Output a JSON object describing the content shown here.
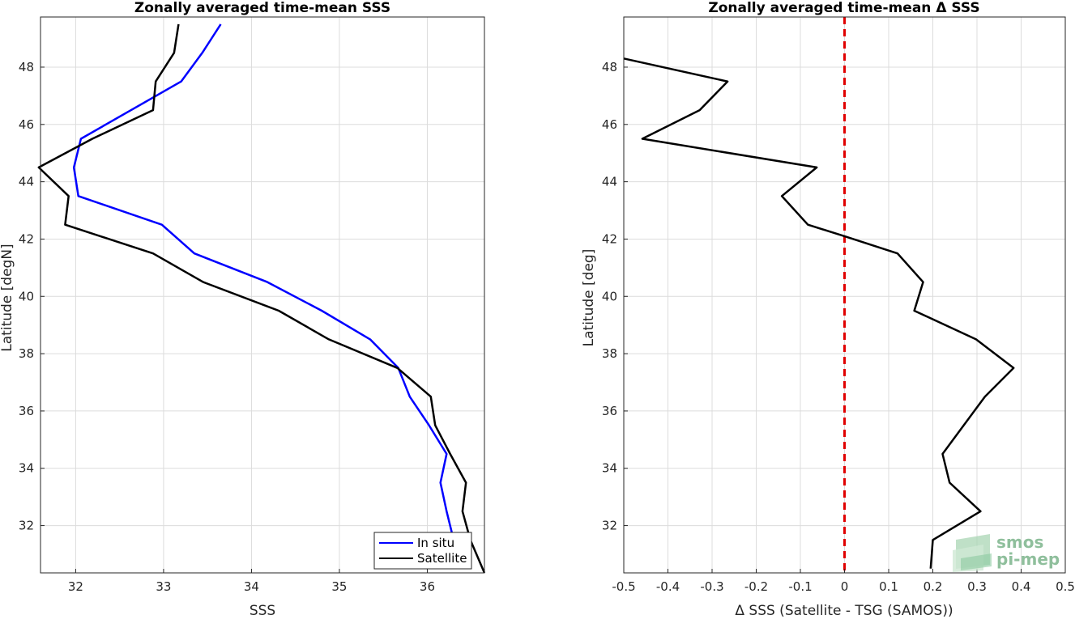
{
  "chart_data": [
    {
      "type": "line",
      "title": "Zonally averaged time-mean SSS",
      "xlabel": "SSS",
      "ylabel": "Latitude [degN]",
      "xlim": [
        31.6,
        36.65
      ],
      "ylim": [
        30.35,
        49.75
      ],
      "xticks": [
        32,
        33,
        34,
        35,
        36
      ],
      "yticks": [
        32,
        34,
        36,
        38,
        40,
        42,
        44,
        46,
        48
      ],
      "grid": true,
      "legend_position": "bottom-right",
      "series": [
        {
          "name": "In situ",
          "color": "#0000ff",
          "x": [
            36.45,
            36.3,
            36.22,
            36.15,
            36.22,
            36.02,
            35.8,
            35.67,
            35.35,
            34.8,
            34.18,
            33.35,
            32.98,
            32.03,
            31.98,
            32.06,
            33.2,
            33.44,
            33.65
          ],
          "y": [
            30.5,
            31.5,
            32.5,
            33.5,
            34.5,
            35.5,
            36.5,
            37.5,
            38.5,
            39.5,
            40.5,
            41.5,
            42.5,
            43.5,
            44.5,
            45.5,
            47.5,
            48.5,
            49.5
          ]
        },
        {
          "name": "Satellite",
          "color": "#000000",
          "x": [
            36.65,
            36.49,
            36.4,
            36.44,
            36.26,
            36.09,
            36.04,
            35.66,
            34.88,
            34.31,
            33.45,
            32.88,
            31.88,
            31.92,
            31.58,
            32.19,
            32.88,
            32.91,
            33.12,
            33.17
          ],
          "y": [
            30.35,
            31.5,
            32.5,
            33.5,
            34.5,
            35.5,
            36.5,
            37.5,
            38.5,
            39.5,
            40.5,
            41.5,
            42.5,
            43.5,
            44.5,
            45.5,
            46.5,
            47.5,
            48.5,
            49.5
          ]
        }
      ]
    },
    {
      "type": "line",
      "title": "Zonally averaged time-mean Δ SSS",
      "xlabel": "Δ SSS (Satellite - TSG (SAMOS))",
      "ylabel": "Latitude [deg]",
      "xlim": [
        -0.5,
        0.5
      ],
      "ylim": [
        30.35,
        49.75
      ],
      "xticks": [
        -0.5,
        -0.4,
        -0.3,
        -0.2,
        -0.1,
        0,
        0.1,
        0.2,
        0.3,
        0.4,
        0.5
      ],
      "xticklabels": [
        "-0.5",
        "-0.4",
        "-0.3",
        "-0.2",
        "-0.1",
        "0",
        "0.1",
        "0.2",
        "0.3",
        "0.4",
        "0.5"
      ],
      "yticks": [
        32,
        34,
        36,
        38,
        40,
        42,
        44,
        46,
        48
      ],
      "grid": true,
      "reference_line": {
        "x": 0,
        "color": "#e00000",
        "style": "dashed"
      },
      "series": [
        {
          "color": "#000000",
          "x": [
            0.195,
            0.2,
            0.308,
            0.238,
            0.222,
            0.318,
            0.383,
            0.298,
            0.158,
            0.178,
            0.12,
            0.0,
            -0.083,
            -0.142,
            -0.063,
            -0.458,
            -0.328,
            -0.265,
            -0.5
          ],
          "y": [
            30.5,
            31.5,
            32.5,
            33.5,
            34.5,
            36.5,
            37.5,
            38.5,
            39.5,
            40.5,
            41.5,
            42.1,
            42.5,
            43.5,
            44.5,
            45.5,
            46.5,
            47.5,
            48.3
          ]
        }
      ]
    }
  ],
  "logo": {
    "line1": "smos",
    "line2": "pi-mep"
  }
}
